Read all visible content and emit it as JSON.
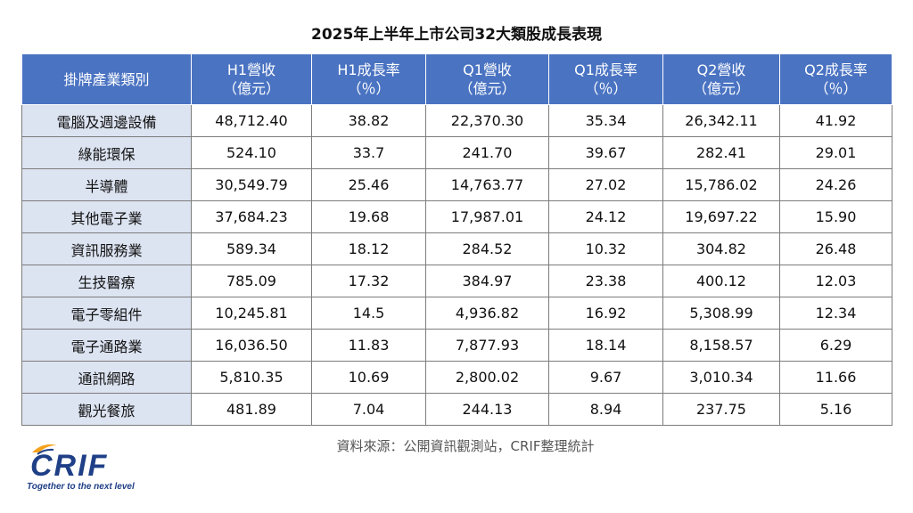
{
  "title": "2025年上半年上市公司32大類股成長表現",
  "headers": [
    [
      "掛牌產業類別"
    ],
    [
      "H1營收",
      "（億元）"
    ],
    [
      "H1成長率",
      "（％）"
    ],
    [
      "Q1營收",
      "（億元）"
    ],
    [
      "Q1成長率",
      "（％）"
    ],
    [
      "Q2營收",
      "（億元）"
    ],
    [
      "Q2成長率",
      "（％）"
    ]
  ],
  "rows": [
    [
      "電腦及週邊設備",
      "48,712.40",
      "38.82",
      "22,370.30",
      "35.34",
      "26,342.11",
      "41.92"
    ],
    [
      "綠能環保",
      "524.10",
      "33.7",
      "241.70",
      "39.67",
      "282.41",
      "29.01"
    ],
    [
      "半導體",
      "30,549.79",
      "25.46",
      "14,763.77",
      "27.02",
      "15,786.02",
      "24.26"
    ],
    [
      "其他電子業",
      "37,684.23",
      "19.68",
      "17,987.01",
      "24.12",
      "19,697.22",
      "15.90"
    ],
    [
      "資訊服務業",
      "589.34",
      "18.12",
      "284.52",
      "10.32",
      "304.82",
      "26.48"
    ],
    [
      "生技醫療",
      "785.09",
      "17.32",
      "384.97",
      "23.38",
      "400.12",
      "12.03"
    ],
    [
      "電子零組件",
      "10,245.81",
      "14.5",
      "4,936.82",
      "16.92",
      "5,308.99",
      "12.34"
    ],
    [
      "電子通路業",
      "16,036.50",
      "11.83",
      "7,877.93",
      "18.14",
      "8,158.57",
      "6.29"
    ],
    [
      "通訊網路",
      "5,810.35",
      "10.69",
      "2,800.02",
      "9.67",
      "3,010.34",
      "11.66"
    ],
    [
      "觀光餐旅",
      "481.89",
      "7.04",
      "244.13",
      "8.94",
      "237.75",
      "5.16"
    ]
  ],
  "source": "資料來源：公開資訊觀測站，CRIF整理統計",
  "logo": {
    "text": "CRIF",
    "tagline": "Together to the next level",
    "colors": {
      "brand": "#1f3f87",
      "accent": "#f5a21b"
    }
  },
  "colors": {
    "header_bg": "#4a73c2",
    "category_bg": "#dce3f1"
  }
}
